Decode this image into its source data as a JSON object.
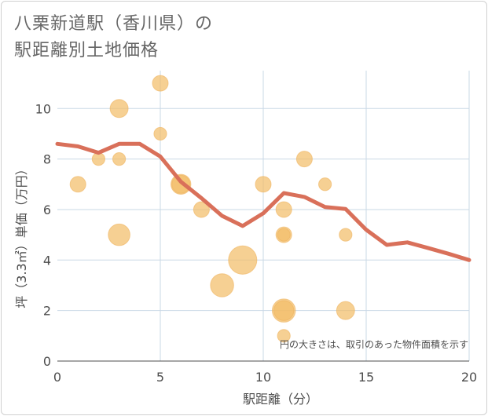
{
  "title_line1": "八栗新道駅（香川県）の",
  "title_line2": "駅距離別土地価格",
  "note": "円の大きさは、取引のあった物件面積を示す",
  "chart_data": {
    "type": "scatter",
    "xlabel": "駅距離（分）",
    "ylabel": "坪（3.3㎡）単価（万円）",
    "xlim": [
      0,
      20
    ],
    "ylim": [
      0,
      11.5
    ],
    "xticks": [
      0,
      5,
      10,
      15,
      20
    ],
    "yticks": [
      0,
      2,
      4,
      6,
      8,
      10
    ],
    "grid": true,
    "colors": {
      "bubble": "#f3be6a",
      "line": "#d9705a"
    },
    "bubbles": [
      {
        "x": 1,
        "y": 7,
        "size": 2
      },
      {
        "x": 2,
        "y": 8,
        "size": 1
      },
      {
        "x": 3,
        "y": 10,
        "size": 3
      },
      {
        "x": 3,
        "y": 8,
        "size": 1
      },
      {
        "x": 3,
        "y": 5,
        "size": 5
      },
      {
        "x": 5,
        "y": 11,
        "size": 2
      },
      {
        "x": 5,
        "y": 9,
        "size": 1
      },
      {
        "x": 6,
        "y": 7,
        "size": 4
      },
      {
        "x": 6,
        "y": 7,
        "size": 3
      },
      {
        "x": 7,
        "y": 6,
        "size": 2
      },
      {
        "x": 8,
        "y": 3,
        "size": 6
      },
      {
        "x": 9,
        "y": 4,
        "size": 10
      },
      {
        "x": 10,
        "y": 7,
        "size": 2
      },
      {
        "x": 11,
        "y": 6,
        "size": 2
      },
      {
        "x": 11,
        "y": 5,
        "size": 2
      },
      {
        "x": 11,
        "y": 5,
        "size": 1
      },
      {
        "x": 11,
        "y": 2,
        "size": 6
      },
      {
        "x": 11,
        "y": 2,
        "size": 4
      },
      {
        "x": 11,
        "y": 1,
        "size": 1
      },
      {
        "x": 12,
        "y": 8,
        "size": 2
      },
      {
        "x": 13,
        "y": 7,
        "size": 1
      },
      {
        "x": 14,
        "y": 5,
        "size": 1
      },
      {
        "x": 14,
        "y": 2,
        "size": 3
      }
    ],
    "trend": [
      {
        "x": 0,
        "y": 8.6
      },
      {
        "x": 1,
        "y": 8.5
      },
      {
        "x": 2,
        "y": 8.25
      },
      {
        "x": 3,
        "y": 8.6
      },
      {
        "x": 4,
        "y": 8.6
      },
      {
        "x": 5,
        "y": 8.1
      },
      {
        "x": 6,
        "y": 7.1
      },
      {
        "x": 7,
        "y": 6.45
      },
      {
        "x": 8,
        "y": 5.75
      },
      {
        "x": 9,
        "y": 5.35
      },
      {
        "x": 10,
        "y": 5.85
      },
      {
        "x": 11,
        "y": 6.65
      },
      {
        "x": 12,
        "y": 6.5
      },
      {
        "x": 13,
        "y": 6.1
      },
      {
        "x": 14,
        "y": 6.02
      },
      {
        "x": 15,
        "y": 5.2
      },
      {
        "x": 16,
        "y": 4.6
      },
      {
        "x": 17,
        "y": 4.7
      },
      {
        "x": 18,
        "y": 4.48
      },
      {
        "x": 19,
        "y": 4.25
      },
      {
        "x": 20,
        "y": 4.0
      }
    ]
  }
}
